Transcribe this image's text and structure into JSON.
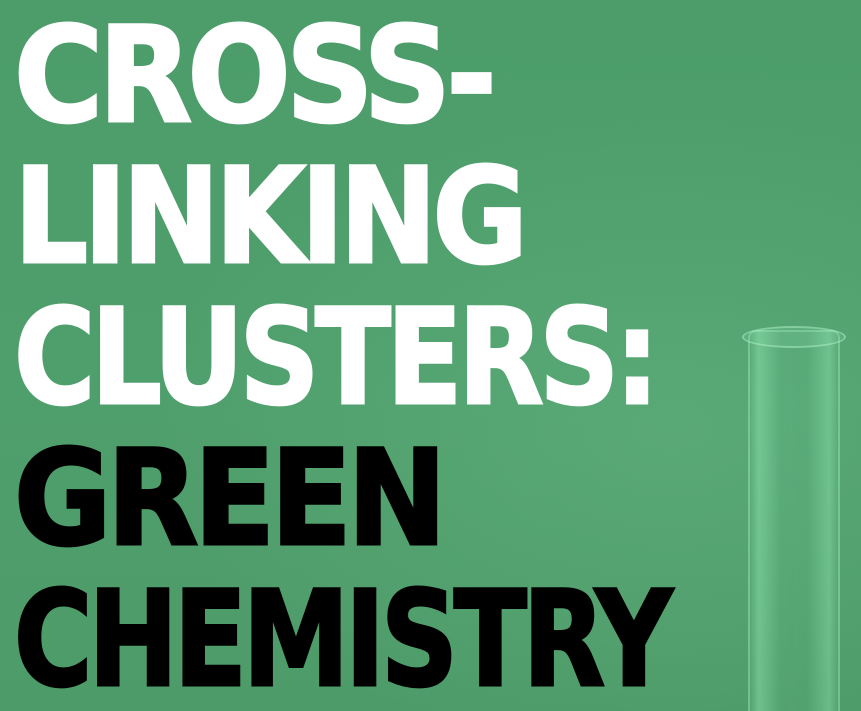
{
  "headline": {
    "line1": "CROSS-",
    "line2": "LINKING",
    "line3": "CLUSTERS:",
    "line4": "GREEN",
    "line5": "CHEMISTRY"
  },
  "colors": {
    "background": "#4f9e6c",
    "primary_text": "#ffffff",
    "accent_text": "#000000"
  },
  "decor": {
    "background_object": "test-tube-icon"
  }
}
